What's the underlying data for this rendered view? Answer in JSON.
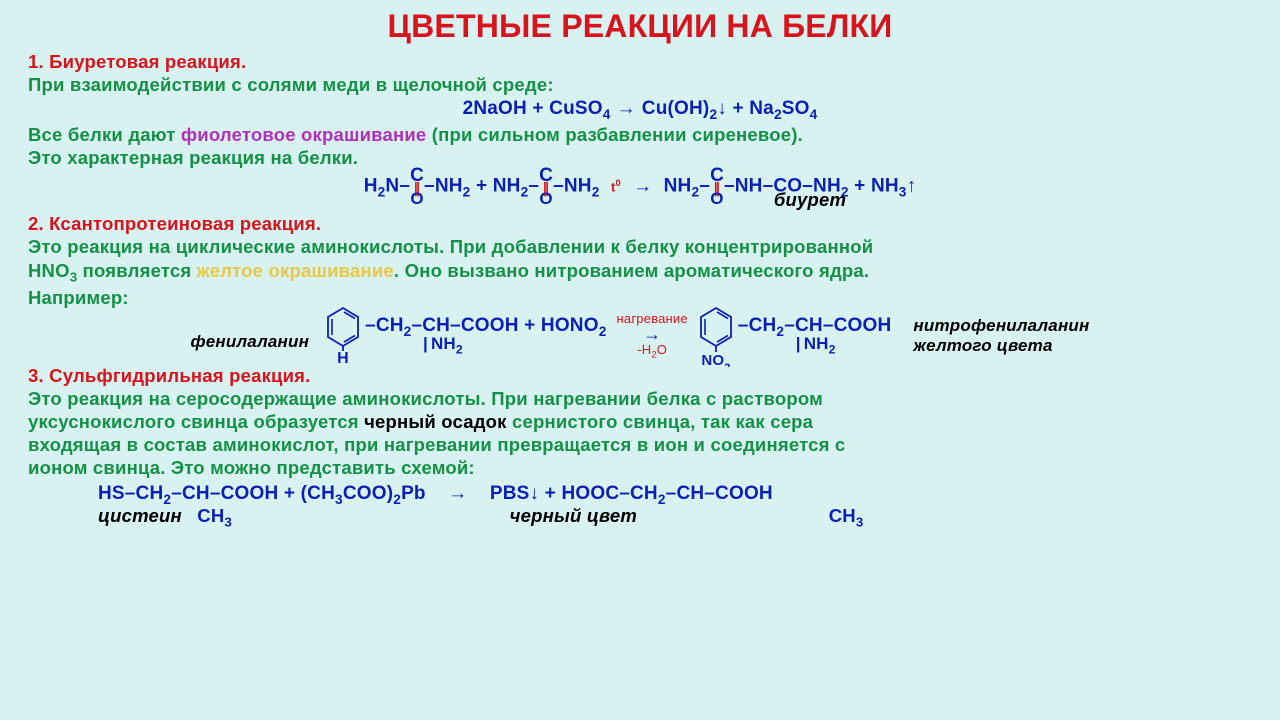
{
  "colors": {
    "title": "#d8131b",
    "section": "#d8131b",
    "green": "#149146",
    "yellow": "#e8c848",
    "violet": "#b030b8",
    "black": "#000000",
    "blue": "#0b1fb3",
    "bg": "#d7f2f0",
    "carbonyl_bond": "#d8131b"
  },
  "title": "ЦВЕТНЫЕ РЕАКЦИИ НА БЕЛКИ",
  "s1": {
    "head": "1. Биуретовая реакция.",
    "l1": "При взаимодействии с солями меди в щелочной среде:",
    "eq1": {
      "lhs1": "2NaOH",
      "plus": " + ",
      "lhs2": "CuSO",
      "lhs2sub": "4",
      "arrow": "→",
      "rhs1": "Cu(OH)",
      "rhs1sub": "2",
      "rhs1down": "↓",
      "rhs2": "Na",
      "rhs2sub1": "2",
      "rhs2b": "SO",
      "rhs2sub2": "4"
    },
    "l2a": "Все белки дают ",
    "l2violet": "фиолетовое окрашивание",
    "l2b": " (при сильном разбавлении сиреневое).",
    "l3": "Это характерная реакция на белки.",
    "eq2": {
      "p1a": "H",
      "p1s": "2",
      "p1b": "N–",
      "p2a": "–NH",
      "p2s": "2",
      "plus": " + ",
      "p3a": "NH",
      "p3s": "2",
      "p3b": "–",
      "p4a": "–NH",
      "p4s": "2",
      "over": "t",
      "oversup": "0",
      "arrow": "→",
      "r1a": "NH",
      "r1s": "2",
      "r1b": "–",
      "r2a": "–NH–CO–NH",
      "r2s": "2",
      "plus2": " + ",
      "nh3": "NH",
      "nh3s": "3",
      "up": "↑",
      "biuret": "биурет"
    }
  },
  "s2": {
    "head": "2. Ксантопротеиновая реакция.",
    "l1": "Это реакция на циклические аминокислоты. При добавлении к белку концентрированной",
    "l2a": "HNO",
    "l2sub": "3",
    "l2b": " появляется ",
    "l2yellow": "желтое окрашивание",
    "l2c": ". Оно вызвано нитрованием ароматического ядра.",
    "l3": "Например:",
    "phenylalanine": "фенилаланин",
    "nitrophen": "нитрофенилаланин",
    "yellowcolor": "желтого цвета",
    "chain": "–CH",
    "chain_s": "2",
    "chain2": "–CH–COOH",
    "nh2": "NH",
    "nh2s": "2",
    "plus": " + HONO",
    "hono_s": "2",
    "over": "нагревание",
    "under": "-H",
    "under_s": "2",
    "under2": "O",
    "arrow": "→",
    "no2": "NO",
    "no2s": "2",
    "h_label": "H"
  },
  "s3": {
    "head": "3. Сульфгидрильная реакция.",
    "l1": "Это реакция на серосодержащие аминокислоты. При нагревании белка с раствором",
    "l2a": "уксуснокислого свинца образуется ",
    "l2black": "черный осадок",
    "l2b": " сернистого свинца, так как сера",
    "l3": "входящая в состав аминокислот, при нагревании превращается в ион и соединяется с",
    "l4": "ионом свинца. Это можно представить схемой:",
    "eq": {
      "lhs": "HS–CH",
      "lhs_s": "2",
      "lhs2": "–CH–COOH + (CH",
      "lhs3_s": "3",
      "lhs3": "COO)",
      "lhs4_s": "2",
      "lhs4": "Pb",
      "arrow": "→",
      "pbs": "PBS↓ + HOOC–CH",
      "pbs_s": "2",
      "pbs2": "–CH–COOH",
      "ch3": "CH",
      "ch3_s": "3",
      "cysteine": "цистеин",
      "black": "черный цвет"
    }
  }
}
